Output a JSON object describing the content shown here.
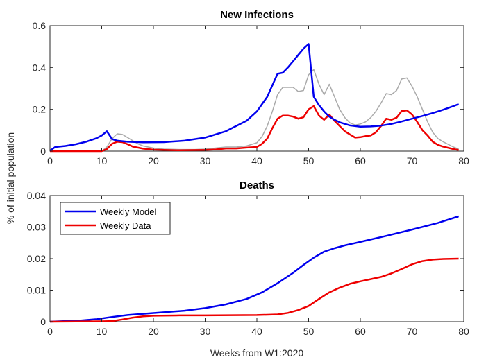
{
  "figure": {
    "xlabel": "Weeks from W1:2020",
    "ylabel": "% of initial population"
  },
  "chart_data": [
    {
      "type": "line",
      "title": "New Infections",
      "xlim": [
        0,
        80
      ],
      "ylim": [
        0,
        0.6
      ],
      "xticks": [
        0,
        10,
        20,
        30,
        40,
        50,
        60,
        70,
        80
      ],
      "yticks": [
        0,
        0.2,
        0.4,
        0.6
      ],
      "xtick_labels": [
        "0",
        "10",
        "20",
        "30",
        "40",
        "50",
        "60",
        "70",
        "80"
      ],
      "ytick_labels": [
        "0",
        "0.2",
        "0.4",
        "0.6"
      ],
      "grid": false,
      "series": [
        {
          "color": "#aaaaaa",
          "width": 1.5,
          "points": [
            [
              0,
              0
            ],
            [
              10,
              0
            ],
            [
              11,
              0.02
            ],
            [
              12,
              0.06
            ],
            [
              13,
              0.083
            ],
            [
              14,
              0.08
            ],
            [
              15,
              0.065
            ],
            [
              16,
              0.05
            ],
            [
              17,
              0.035
            ],
            [
              18,
              0.025
            ],
            [
              20,
              0.015
            ],
            [
              22,
              0.01
            ],
            [
              25,
              0.008
            ],
            [
              28,
              0.008
            ],
            [
              30,
              0.01
            ],
            [
              32,
              0.015
            ],
            [
              34,
              0.02
            ],
            [
              36,
              0.02
            ],
            [
              38,
              0.025
            ],
            [
              40,
              0.04
            ],
            [
              41,
              0.07
            ],
            [
              42,
              0.12
            ],
            [
              43,
              0.19
            ],
            [
              44,
              0.27
            ],
            [
              45,
              0.305
            ],
            [
              46,
              0.305
            ],
            [
              47,
              0.305
            ],
            [
              48,
              0.285
            ],
            [
              49,
              0.29
            ],
            [
              50,
              0.365
            ],
            [
              51,
              0.39
            ],
            [
              52,
              0.32
            ],
            [
              53,
              0.27
            ],
            [
              54,
              0.32
            ],
            [
              55,
              0.26
            ],
            [
              56,
              0.2
            ],
            [
              57,
              0.16
            ],
            [
              58,
              0.135
            ],
            [
              59,
              0.125
            ],
            [
              60,
              0.13
            ],
            [
              61,
              0.14
            ],
            [
              62,
              0.16
            ],
            [
              63,
              0.19
            ],
            [
              64,
              0.23
            ],
            [
              65,
              0.275
            ],
            [
              66,
              0.27
            ],
            [
              67,
              0.29
            ],
            [
              68,
              0.345
            ],
            [
              69,
              0.35
            ],
            [
              70,
              0.31
            ],
            [
              71,
              0.26
            ],
            [
              72,
              0.2
            ],
            [
              73,
              0.14
            ],
            [
              74,
              0.09
            ],
            [
              75,
              0.06
            ],
            [
              76,
              0.045
            ],
            [
              78,
              0.02
            ],
            [
              79,
              0.01
            ]
          ]
        },
        {
          "color": "#ee0000",
          "width": 2.5,
          "points": [
            [
              0,
              0
            ],
            [
              10,
              0
            ],
            [
              11,
              0.01
            ],
            [
              12,
              0.035
            ],
            [
              13,
              0.045
            ],
            [
              14,
              0.043
            ],
            [
              15,
              0.033
            ],
            [
              16,
              0.022
            ],
            [
              18,
              0.012
            ],
            [
              20,
              0.007
            ],
            [
              25,
              0.004
            ],
            [
              30,
              0.006
            ],
            [
              32,
              0.008
            ],
            [
              34,
              0.013
            ],
            [
              36,
              0.013
            ],
            [
              38,
              0.017
            ],
            [
              40,
              0.02
            ],
            [
              41,
              0.035
            ],
            [
              42,
              0.06
            ],
            [
              43,
              0.11
            ],
            [
              44,
              0.155
            ],
            [
              45,
              0.17
            ],
            [
              46,
              0.17
            ],
            [
              47,
              0.165
            ],
            [
              48,
              0.155
            ],
            [
              49,
              0.162
            ],
            [
              50,
              0.2
            ],
            [
              51,
              0.215
            ],
            [
              52,
              0.17
            ],
            [
              53,
              0.15
            ],
            [
              54,
              0.175
            ],
            [
              55,
              0.145
            ],
            [
              56,
              0.12
            ],
            [
              57,
              0.095
            ],
            [
              58,
              0.08
            ],
            [
              59,
              0.065
            ],
            [
              60,
              0.067
            ],
            [
              61,
              0.072
            ],
            [
              62,
              0.075
            ],
            [
              63,
              0.09
            ],
            [
              64,
              0.12
            ],
            [
              65,
              0.155
            ],
            [
              66,
              0.15
            ],
            [
              67,
              0.16
            ],
            [
              68,
              0.192
            ],
            [
              69,
              0.195
            ],
            [
              70,
              0.175
            ],
            [
              71,
              0.14
            ],
            [
              72,
              0.1
            ],
            [
              73,
              0.075
            ],
            [
              74,
              0.045
            ],
            [
              75,
              0.03
            ],
            [
              76,
              0.022
            ],
            [
              78,
              0.01
            ],
            [
              79,
              0.005
            ]
          ]
        },
        {
          "color": "#0000ee",
          "width": 2.5,
          "points": [
            [
              0,
              0.002
            ],
            [
              1,
              0.02
            ],
            [
              3,
              0.025
            ],
            [
              5,
              0.033
            ],
            [
              7,
              0.045
            ],
            [
              9,
              0.062
            ],
            [
              10,
              0.075
            ],
            [
              11,
              0.095
            ],
            [
              12,
              0.058
            ],
            [
              13,
              0.05
            ],
            [
              15,
              0.045
            ],
            [
              18,
              0.042
            ],
            [
              22,
              0.043
            ],
            [
              26,
              0.05
            ],
            [
              30,
              0.065
            ],
            [
              34,
              0.095
            ],
            [
              38,
              0.145
            ],
            [
              40,
              0.19
            ],
            [
              42,
              0.26
            ],
            [
              43,
              0.315
            ],
            [
              44,
              0.37
            ],
            [
              45,
              0.375
            ],
            [
              46,
              0.4
            ],
            [
              47,
              0.43
            ],
            [
              48,
              0.46
            ],
            [
              49,
              0.49
            ],
            [
              50,
              0.512
            ],
            [
              51,
              0.26
            ],
            [
              52,
              0.22
            ],
            [
              53,
              0.19
            ],
            [
              54,
              0.165
            ],
            [
              55,
              0.15
            ],
            [
              56,
              0.138
            ],
            [
              58,
              0.123
            ],
            [
              60,
              0.117
            ],
            [
              62,
              0.118
            ],
            [
              64,
              0.122
            ],
            [
              66,
              0.13
            ],
            [
              68,
              0.142
            ],
            [
              70,
              0.155
            ],
            [
              72,
              0.168
            ],
            [
              74,
              0.182
            ],
            [
              76,
              0.198
            ],
            [
              78,
              0.215
            ],
            [
              79,
              0.225
            ]
          ]
        }
      ]
    },
    {
      "type": "line",
      "title": "Deaths",
      "xlim": [
        0,
        80
      ],
      "ylim": [
        0,
        0.04
      ],
      "xticks": [
        0,
        10,
        20,
        30,
        40,
        50,
        60,
        70,
        80
      ],
      "yticks": [
        0,
        0.01,
        0.02,
        0.03,
        0.04
      ],
      "xtick_labels": [
        "0",
        "10",
        "20",
        "30",
        "40",
        "50",
        "60",
        "70",
        "80"
      ],
      "ytick_labels": [
        "0",
        "0.01",
        "0.02",
        "0.03",
        "0.04"
      ],
      "grid": false,
      "legend": {
        "placement": "top-left",
        "entries": [
          {
            "label": "Weekly Model",
            "color": "#0000ee"
          },
          {
            "label": "Weekly Data",
            "color": "#ee0000"
          }
        ]
      },
      "series": [
        {
          "name": "Weekly Model",
          "color": "#0000ee",
          "width": 2.5,
          "points": [
            [
              0,
              0
            ],
            [
              3,
              0.0002
            ],
            [
              6,
              0.0004
            ],
            [
              9,
              0.0008
            ],
            [
              12,
              0.0015
            ],
            [
              15,
              0.0021
            ],
            [
              18,
              0.0025
            ],
            [
              22,
              0.003
            ],
            [
              26,
              0.0035
            ],
            [
              30,
              0.0043
            ],
            [
              34,
              0.0055
            ],
            [
              38,
              0.0072
            ],
            [
              41,
              0.0093
            ],
            [
              44,
              0.0122
            ],
            [
              47,
              0.0155
            ],
            [
              49,
              0.018
            ],
            [
              51,
              0.0203
            ],
            [
              53,
              0.0222
            ],
            [
              55,
              0.0233
            ],
            [
              57,
              0.0242
            ],
            [
              60,
              0.0253
            ],
            [
              65,
              0.0272
            ],
            [
              70,
              0.0292
            ],
            [
              75,
              0.0313
            ],
            [
              79,
              0.0334
            ]
          ]
        },
        {
          "name": "Weekly Data",
          "color": "#ee0000",
          "width": 2.5,
          "points": [
            [
              0,
              0
            ],
            [
              10,
              0.0001
            ],
            [
              12,
              0.0002
            ],
            [
              14,
              0.0007
            ],
            [
              16,
              0.0013
            ],
            [
              18,
              0.0017
            ],
            [
              20,
              0.0019
            ],
            [
              25,
              0.002
            ],
            [
              30,
              0.002
            ],
            [
              40,
              0.0021
            ],
            [
              44,
              0.0023
            ],
            [
              46,
              0.0028
            ],
            [
              48,
              0.0037
            ],
            [
              50,
              0.005
            ],
            [
              52,
              0.0072
            ],
            [
              54,
              0.0093
            ],
            [
              56,
              0.0108
            ],
            [
              58,
              0.012
            ],
            [
              60,
              0.0128
            ],
            [
              62,
              0.0135
            ],
            [
              64,
              0.0142
            ],
            [
              66,
              0.0153
            ],
            [
              68,
              0.0167
            ],
            [
              70,
              0.0182
            ],
            [
              72,
              0.0192
            ],
            [
              74,
              0.0197
            ],
            [
              76,
              0.0199
            ],
            [
              79,
              0.02
            ]
          ]
        }
      ]
    }
  ]
}
